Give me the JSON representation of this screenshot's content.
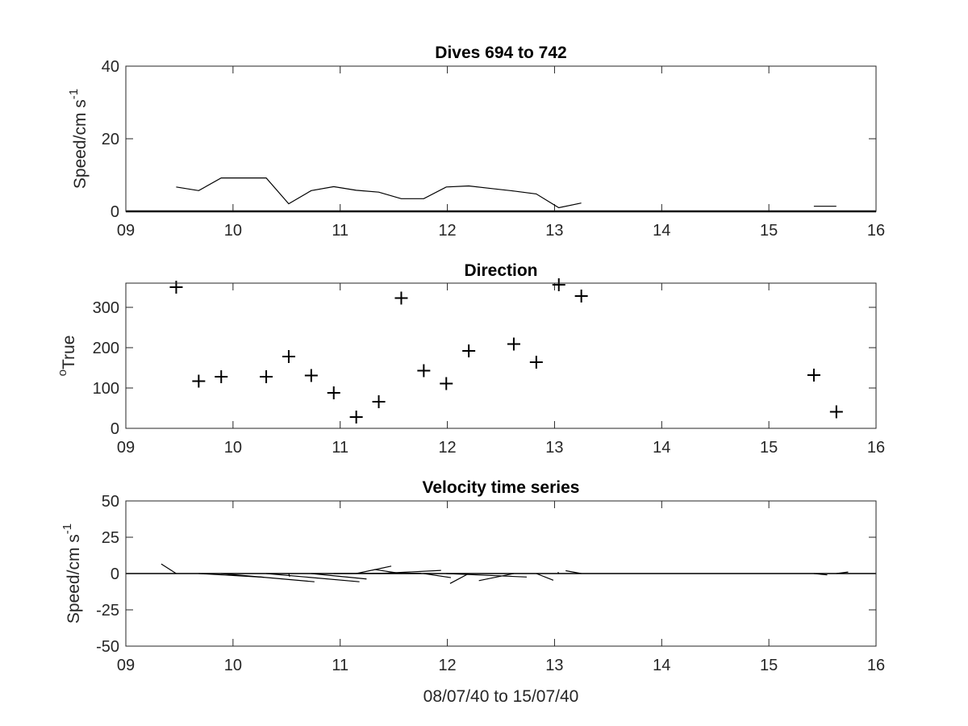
{
  "chart_data": [
    {
      "id": "speed",
      "type": "line",
      "title": "Dives 694 to 742",
      "ylabel": "Speed/cm s",
      "ylabel_sup": "-1",
      "xlim": [
        9,
        16
      ],
      "ylim": [
        0,
        40
      ],
      "xticks": [
        "09",
        "10",
        "11",
        "12",
        "13",
        "14",
        "15",
        "16"
      ],
      "yticks": [
        "0",
        "20",
        "40"
      ],
      "grid": false,
      "series": [
        {
          "segments": [
            {
              "x": [
                9.47,
                9.68,
                9.89,
                10.1,
                10.31,
                10.52,
                10.73,
                10.94,
                11.15,
                11.36,
                11.57,
                11.78,
                11.99,
                12.2,
                12.41,
                12.62,
                12.83,
                13.04,
                13.25
              ],
              "y": [
                6.7,
                5.7,
                9.2,
                9.2,
                9.2,
                2.1,
                5.7,
                6.8,
                5.8,
                5.3,
                3.5,
                3.5,
                6.7,
                7.0,
                6.3,
                5.6,
                4.8,
                1.0,
                2.3
              ]
            },
            {
              "x": [
                15.42,
                15.63
              ],
              "y": [
                1.4,
                1.4
              ]
            }
          ]
        }
      ]
    },
    {
      "id": "direction",
      "type": "scatter",
      "title": "Direction",
      "ylabel": "True",
      "ylabel_sup": "o",
      "xlim": [
        9,
        16
      ],
      "ylim": [
        0,
        360
      ],
      "xticks": [
        "09",
        "10",
        "11",
        "12",
        "13",
        "14",
        "15",
        "16"
      ],
      "yticks": [
        "0",
        "100",
        "200",
        "300"
      ],
      "grid": false,
      "marker": "+",
      "x": [
        9.47,
        9.68,
        9.89,
        10.31,
        10.52,
        10.73,
        10.94,
        11.15,
        11.36,
        11.57,
        11.78,
        11.99,
        12.2,
        12.62,
        12.83,
        13.04,
        13.25,
        15.42,
        15.63
      ],
      "y": [
        350,
        117,
        128,
        128,
        178,
        131,
        88,
        28,
        66,
        323,
        143,
        111,
        192,
        209,
        164,
        356,
        328,
        132,
        41
      ]
    },
    {
      "id": "velocity",
      "type": "line",
      "title": "Velocity time series",
      "ylabel": "Speed/cm s",
      "ylabel_sup": "-1",
      "xlabel": "08/07/40 to 15/07/40",
      "xlim": [
        9,
        16
      ],
      "ylim": [
        -50,
        50
      ],
      "xticks": [
        "09",
        "10",
        "11",
        "12",
        "13",
        "14",
        "15",
        "16"
      ],
      "yticks": [
        "-50",
        "-25",
        "0",
        "25",
        "50"
      ],
      "grid": false,
      "zero_line": true,
      "vectors": {
        "x": [
          9.47,
          9.68,
          9.89,
          10.31,
          10.52,
          10.73,
          10.94,
          11.15,
          11.36,
          11.57,
          11.78,
          11.99,
          12.2,
          12.62,
          12.83,
          13.04,
          13.25,
          15.42,
          15.63
        ],
        "speed": [
          6.7,
          5.7,
          9.2,
          9.2,
          2.1,
          5.7,
          6.8,
          5.8,
          5.3,
          3.5,
          3.5,
          6.7,
          7.0,
          5.6,
          4.8,
          1.0,
          2.3,
          1.4,
          1.4
        ],
        "direction": [
          350,
          117,
          128,
          128,
          178,
          131,
          88,
          28,
          66,
          323,
          143,
          111,
          192,
          209,
          164,
          356,
          328,
          132,
          41
        ]
      }
    }
  ]
}
